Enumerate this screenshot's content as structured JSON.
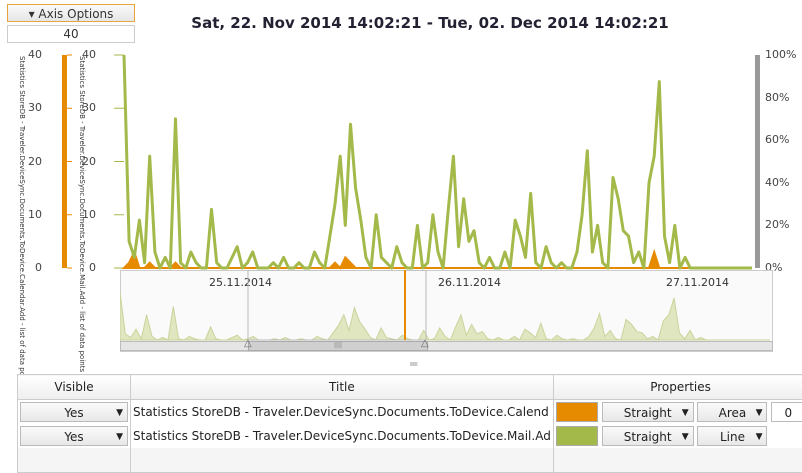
{
  "axis_options": {
    "label": "Axis Options",
    "value": "40"
  },
  "title": "Sat, 22. Nov 2014 14:02:21 - Tue, 02. Dec 2014 14:02:21",
  "left_axes": [
    {
      "label": "Statistics StoreDB - Traveler.DeviceSync.Documents.ToDevice.Calendar.Add - list of data points",
      "color": "#e68a00",
      "ticks": [
        "40",
        "30",
        "20",
        "10",
        "0"
      ]
    },
    {
      "label": "Statistics StoreDB - Traveler.DeviceSync.Documents.ToDevice.Mail.Add - list of data points",
      "color": "#a3b94a",
      "ticks": [
        "40",
        "30",
        "20",
        "10",
        "0"
      ]
    }
  ],
  "right_axis": {
    "ticks": [
      "100%",
      "80%",
      "60%",
      "40%",
      "20%",
      "0%"
    ],
    "color": "#999999"
  },
  "navigator": {
    "dates": [
      "25.11.2014",
      "26.11.2014",
      "27.11.2014"
    ]
  },
  "chart_data": {
    "type": "line",
    "ylim": [
      0,
      40
    ],
    "series": [
      {
        "name": "Statistics StoreDB - Traveler.DeviceSync.Documents.ToDevice.Mail.Add",
        "color": "#a3b94a",
        "style": "line",
        "values": [
          40,
          5,
          2,
          9,
          1,
          21,
          3,
          0,
          2,
          0,
          28,
          1,
          0,
          3,
          1,
          0,
          0,
          11,
          1,
          0,
          0,
          2,
          4,
          0,
          1,
          3,
          0,
          0,
          0,
          1,
          0,
          2,
          0,
          0,
          1,
          0,
          0,
          3,
          1,
          0,
          6,
          12,
          21,
          8,
          27,
          15,
          9,
          2,
          0,
          10,
          2,
          1,
          0,
          4,
          1,
          0,
          0,
          8,
          0,
          1,
          10,
          3,
          0,
          11,
          21,
          4,
          13,
          5,
          7,
          1,
          0,
          2,
          0,
          0,
          3,
          0,
          9,
          6,
          2,
          14,
          1,
          0,
          4,
          1,
          0,
          1,
          0,
          0,
          3,
          10,
          22,
          3,
          8,
          1,
          0,
          17,
          13,
          7,
          6,
          1,
          3,
          0,
          16,
          21,
          35,
          6,
          1,
          8,
          0,
          2,
          0,
          0,
          0,
          0,
          0,
          0,
          0,
          0,
          0,
          0,
          0,
          0,
          0
        ]
      },
      {
        "name": "Statistics StoreDB - Traveler.DeviceSync.Documents.ToDevice.Calendar.Add",
        "color": "#e68a00",
        "style": "area",
        "values": [
          0,
          1,
          3,
          0,
          0,
          1,
          0,
          0,
          0,
          0,
          1,
          0,
          0,
          0,
          0,
          0,
          0,
          0,
          0,
          0,
          0,
          0,
          0,
          0,
          0,
          0,
          0,
          0,
          0,
          0,
          0,
          0,
          0,
          0,
          0,
          0,
          0,
          0,
          0,
          0,
          0,
          1,
          0,
          2,
          1,
          0,
          0,
          0,
          0,
          0,
          0,
          0,
          0,
          0,
          0,
          0,
          0,
          0,
          0,
          0,
          0,
          0,
          0,
          0,
          0,
          0,
          0,
          0,
          0,
          0,
          0,
          0,
          0,
          0,
          0,
          0,
          0,
          0,
          0,
          0,
          0,
          0,
          0,
          0,
          0,
          0,
          0,
          0,
          0,
          0,
          0,
          0,
          0,
          0,
          0,
          0,
          0,
          0,
          0,
          0,
          0,
          0,
          0,
          3,
          0,
          0,
          0,
          0,
          0,
          0,
          0,
          0,
          0,
          0,
          0,
          0,
          0,
          0,
          0,
          0,
          0,
          0,
          0
        ]
      }
    ]
  },
  "table": {
    "headers": [
      "Visible",
      "Title",
      "Properties"
    ],
    "rows": [
      {
        "visible": "Yes",
        "title": "Statistics StoreDB - Traveler.DeviceSync.Documents.ToDevice.Calend",
        "color": "#e68a00",
        "curve": "Straight",
        "type": "Area",
        "offset": "0"
      },
      {
        "visible": "Yes",
        "title": "Statistics StoreDB - Traveler.DeviceSync.Documents.ToDevice.Mail.Ad",
        "color": "#a3b94a",
        "curve": "Straight",
        "type": "Line"
      }
    ]
  }
}
